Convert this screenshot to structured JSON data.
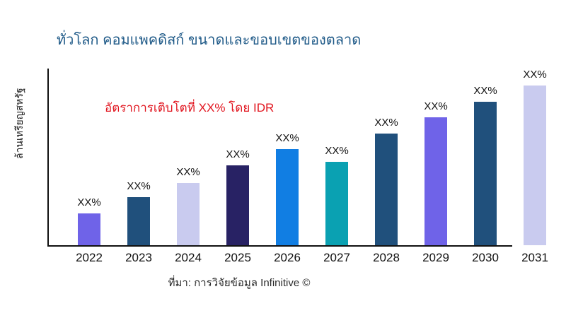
{
  "header": {
    "title": "ทั่วโลก คอมแพคดิสก์ ขนาดและขอบเขตของตลาด"
  },
  "annotation": {
    "text": "อัตราการเติบโตที่ XX% โดย IDR",
    "color": "#e1141e"
  },
  "axes": {
    "y_label": "ล้านเหรียญสหรัฐ"
  },
  "footer": {
    "source": "ที่มา: การวิจัยข้อมูล Infinitive ©"
  },
  "colors": {
    "title": "#1f5a88",
    "annotation": "#e1141e",
    "axis_line": "#111111",
    "label_text": "#111111",
    "source_text": "#2a2a2a",
    "background": "#ffffff"
  },
  "chart_data": {
    "type": "bar",
    "title": "ทั่วโลก คอมแพคดิสก์ ขนาดและขอบเขตของตลาด",
    "xlabel": "",
    "ylabel": "ล้านเหรียญสหรัฐ",
    "categories": [
      "2022",
      "2023",
      "2024",
      "2025",
      "2026",
      "2027",
      "2028",
      "2029",
      "2030",
      "2031"
    ],
    "values": [
      0.2,
      0.3,
      0.39,
      0.5,
      0.6,
      0.52,
      0.7,
      0.8,
      0.9,
      1.0
    ],
    "value_labels": [
      "XX%",
      "XX%",
      "XX%",
      "XX%",
      "XX%",
      "XX%",
      "XX%",
      "XX%",
      "XX%",
      "XX%"
    ],
    "bar_colors": [
      "#6f63e8",
      "#20507c",
      "#c9cbef",
      "#282264",
      "#117ee3",
      "#0aa1b2",
      "#20507c",
      "#6f63e8",
      "#20507c",
      "#c9cbef"
    ],
    "annotation": "อัตราการเติบโตที่ XX% โดย IDR",
    "source": "ที่มา: การวิจัยข้อมูล Infinitive ©",
    "grid": false,
    "legend": false,
    "ylim": [
      0,
      1.08
    ]
  }
}
